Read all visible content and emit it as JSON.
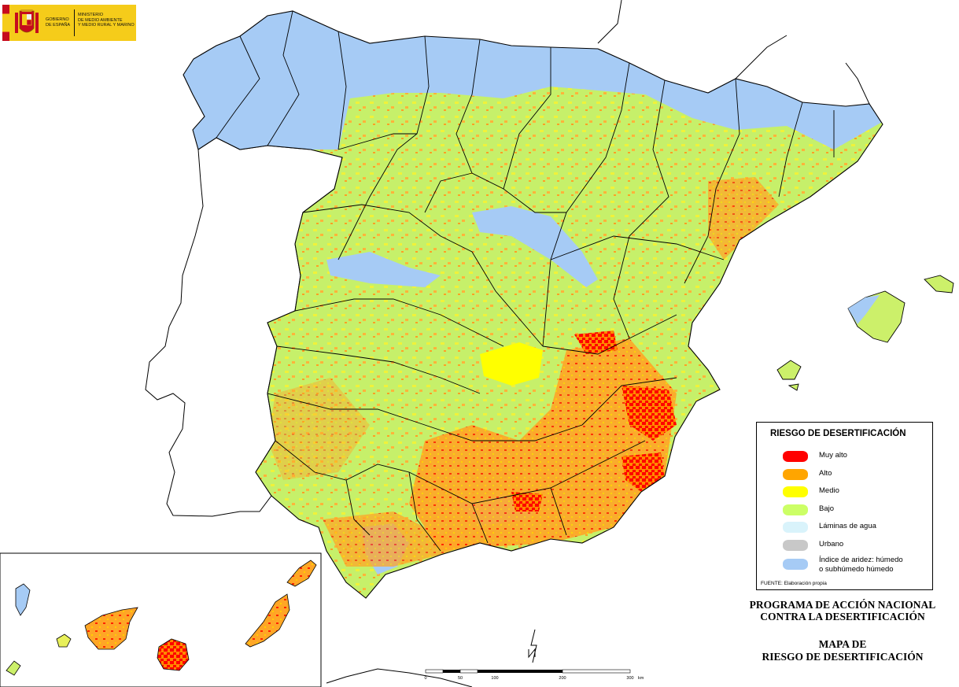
{
  "logo": {
    "government": "GOBIERNO\nDE ESPAÑA",
    "ministry": "MINISTERIO\nDE MEDIO AMBIENTE\nY MEDIO RURAL Y MARINO",
    "shield_icon": "spain-coat-of-arms-icon"
  },
  "legend": {
    "title": "RIESGO DE DESERTIFICACIÓN",
    "items": [
      {
        "label": "Muy alto",
        "color": "#ff0000"
      },
      {
        "label": "Alto",
        "color": "#ffa500"
      },
      {
        "label": "Medio",
        "color": "#ffff00"
      },
      {
        "label": "Bajo",
        "color": "#ccff66"
      },
      {
        "label": "Láminas de agua",
        "color": "#d9f3fb"
      },
      {
        "label": "Urbano",
        "color": "#c8c8c8"
      },
      {
        "label": "Índice de aridez: húmedo o subhúmedo húmedo",
        "color": "#a6cbf5"
      }
    ],
    "source": "FUENTE: Elaboración propia"
  },
  "titles": {
    "program_line1": "PROGRAMA DE ACCIÓN NACIONAL",
    "program_line2": "CONTRA LA DESERTIFICACIÓN",
    "map_line1": "MAPA DE",
    "map_line2": "RIESGO DE DESERTIFICACIÓN"
  },
  "scale_bar": {
    "ticks": [
      "0",
      "50",
      "100",
      "200",
      "300"
    ],
    "unit": "km"
  },
  "north_arrow": {
    "icon": "north-arrow-icon",
    "label": "N"
  }
}
